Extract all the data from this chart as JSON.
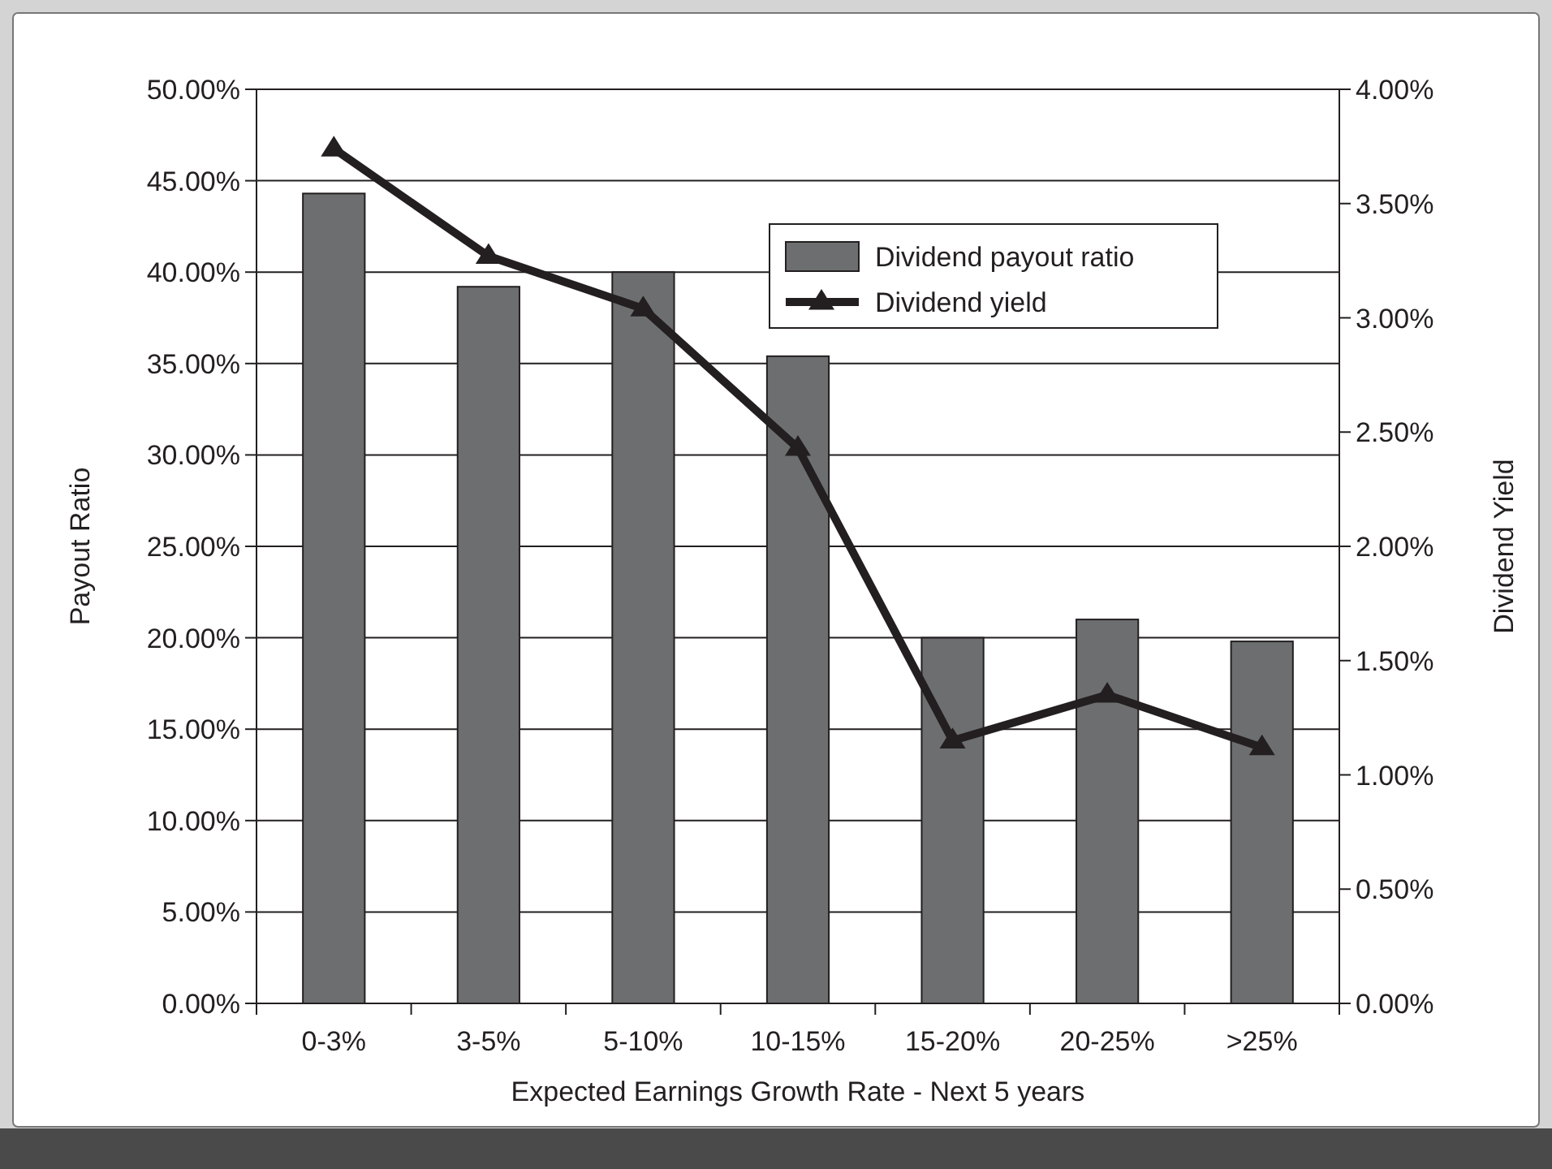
{
  "chart_data": {
    "type": "bar",
    "xlabel": "Expected Earnings Growth Rate - Next 5 years",
    "ylabel": "Payout Ratio",
    "y2label": "Dividend Yield",
    "categories": [
      "0-3%",
      "3-5%",
      "5-10%",
      "10-15%",
      "15-20%",
      "20-25%",
      ">25%"
    ],
    "series": [
      {
        "name": "Dividend payout ratio",
        "color": "#6d6e70",
        "values": [
          44.3,
          39.2,
          40.0,
          35.4,
          20.0,
          21.0,
          19.8
        ]
      },
      {
        "name": "Dividend yield",
        "type": "line",
        "axis": "y2",
        "color": "#231f20",
        "marker": "triangle",
        "values": [
          3.74,
          3.27,
          3.04,
          2.43,
          1.15,
          1.35,
          1.12
        ]
      }
    ],
    "ylim": [
      0,
      50
    ],
    "yticks": [
      {
        "value": 0,
        "label": "0.00%"
      },
      {
        "value": 5,
        "label": "5.00%"
      },
      {
        "value": 10,
        "label": "10.00%"
      },
      {
        "value": 15,
        "label": "15.00%"
      },
      {
        "value": 20,
        "label": "20.00%"
      },
      {
        "value": 25,
        "label": "25.00%"
      },
      {
        "value": 30,
        "label": "30.00%"
      },
      {
        "value": 35,
        "label": "35.00%"
      },
      {
        "value": 40,
        "label": "40.00%"
      },
      {
        "value": 45,
        "label": "45.00%"
      },
      {
        "value": 50,
        "label": "50.00%"
      }
    ],
    "y2lim": [
      0,
      4
    ],
    "y2ticks": [
      {
        "value": 0,
        "label": "0.00%"
      },
      {
        "value": 0.5,
        "label": "0.50%"
      },
      {
        "value": 1,
        "label": "1.00%"
      },
      {
        "value": 1.5,
        "label": "1.50%"
      },
      {
        "value": 2,
        "label": "2.00%"
      },
      {
        "value": 2.5,
        "label": "2.50%"
      },
      {
        "value": 3,
        "label": "3.00%"
      },
      {
        "value": 3.5,
        "label": "3.50%"
      },
      {
        "value": 4,
        "label": "4.00%"
      }
    ],
    "grid": "y",
    "legend": "top right"
  }
}
